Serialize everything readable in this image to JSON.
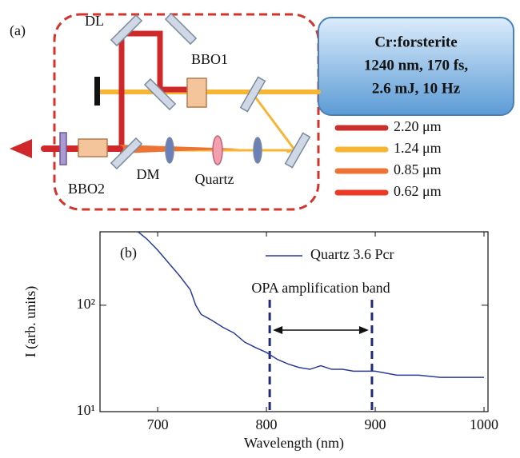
{
  "diagram": {
    "panel_label": "(a)",
    "components": {
      "dl": "DL",
      "bbo1": "BBO1",
      "bbo2": "BBO2",
      "dm": "DM",
      "quartz": "Quartz"
    },
    "laser": [
      "Cr:forsterite",
      "1240 nm, 170 fs,",
      "2.6 mJ, 10 Hz"
    ],
    "beams": [
      {
        "label": "2.20 μm",
        "color": "#c9302c"
      },
      {
        "label": "1.24 μm",
        "color": "#f6b533"
      },
      {
        "label": "0.85 μm",
        "color": "#ec7333"
      },
      {
        "label": "0.62 μm",
        "color": "#ea3a26"
      }
    ]
  },
  "chart_data": {
    "type": "line",
    "panel_label": "(b)",
    "xlabel": "Wavelength  (nm)",
    "ylabel": "I  (arb. units)",
    "log_y": true,
    "x": [
      682,
      690,
      700,
      710,
      720,
      730,
      735,
      740,
      750,
      760,
      770,
      780,
      790,
      800,
      810,
      820,
      830,
      840,
      850,
      860,
      870,
      880,
      890,
      900,
      920,
      940,
      960,
      980,
      1000
    ],
    "series": [
      {
        "name": "Quartz 3.6 Pcr",
        "color": "#2a3a9a",
        "values": [
          490,
          420,
          330,
          250,
          190,
          140,
          100,
          82,
          72,
          62,
          55,
          45,
          40,
          36,
          31,
          28,
          26,
          25,
          27,
          25,
          25,
          24,
          24,
          24,
          22,
          22,
          21,
          21,
          21
        ]
      }
    ],
    "band": {
      "label": "OPA amplification band",
      "x": [
        803,
        897
      ],
      "color": "#1f2a80"
    },
    "xlim": [
      647,
      1000
    ],
    "xticks": [
      700,
      800,
      900,
      1000
    ],
    "ylim": [
      10,
      490
    ],
    "yticks": [
      {
        "value": 10,
        "label": "10¹"
      },
      {
        "value": 100,
        "label": "10²"
      }
    ],
    "legend": "upper right"
  }
}
